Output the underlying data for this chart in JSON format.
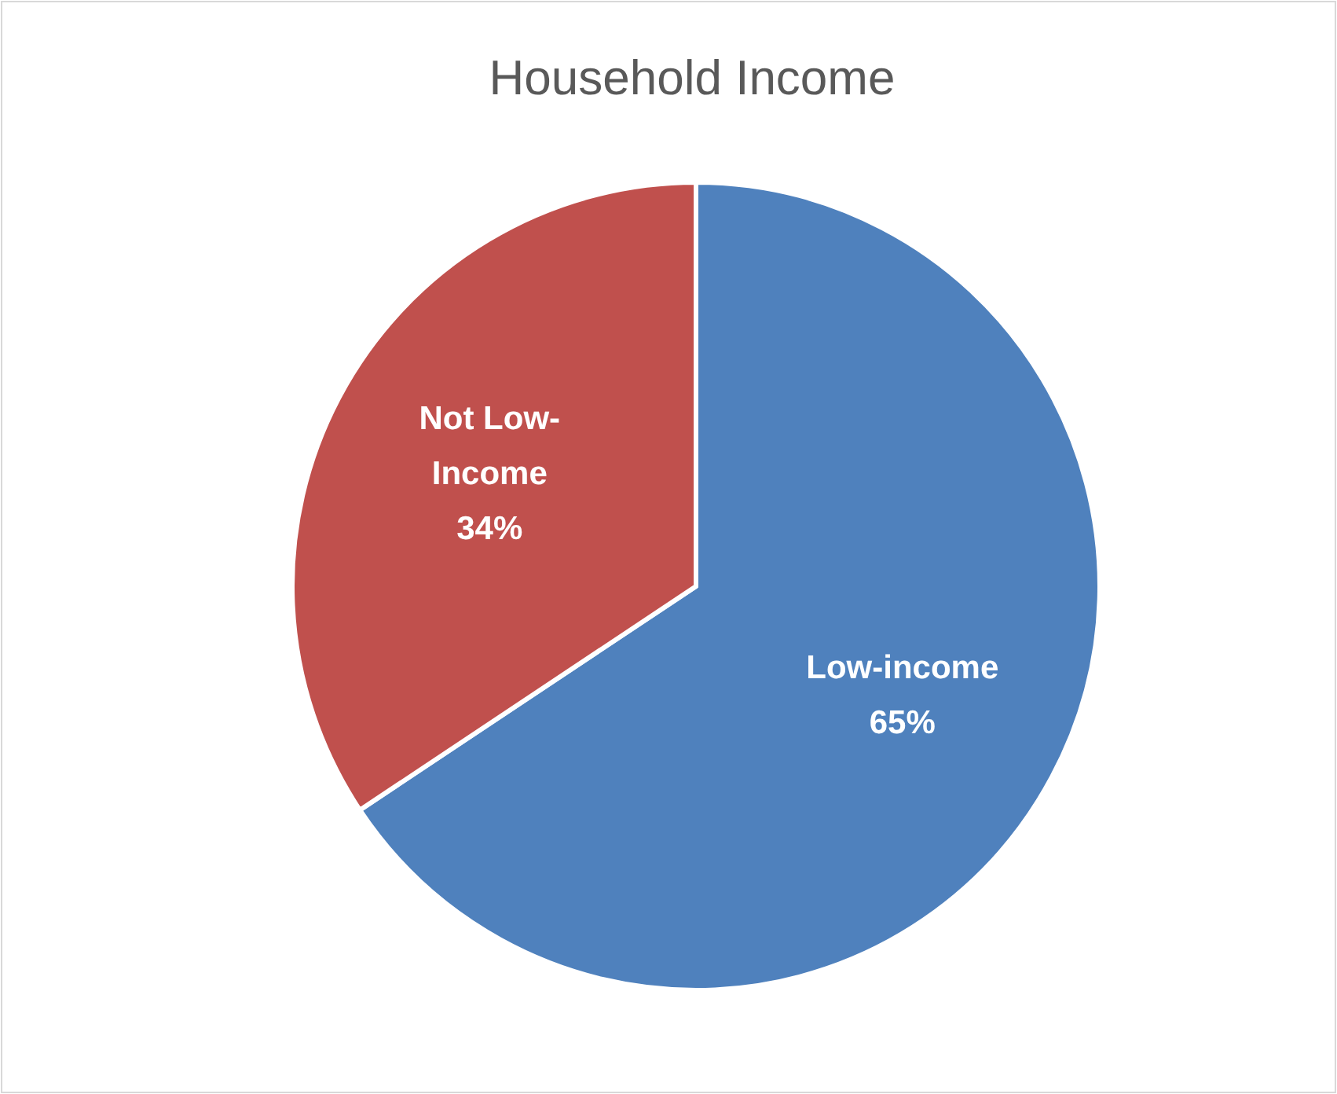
{
  "chart_data": {
    "type": "pie",
    "title": "Household Income",
    "categories": [
      "Low-income",
      "Not Low-Income"
    ],
    "values": [
      65,
      34
    ],
    "colors": [
      "#4f81bd",
      "#c0504d"
    ],
    "value_labels": [
      "65%",
      "34%"
    ]
  }
}
